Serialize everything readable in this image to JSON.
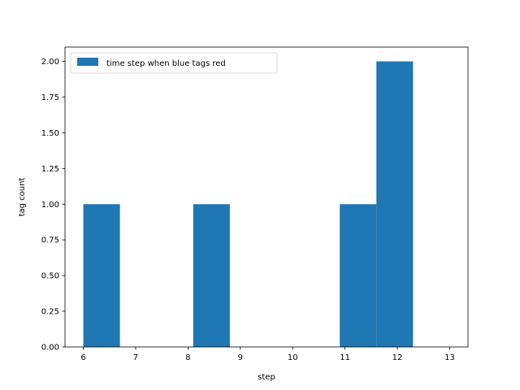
{
  "chart_data": {
    "type": "bar",
    "title": "",
    "xlabel": "step",
    "ylabel": "tag count",
    "xlim": [
      5.65,
      13.35
    ],
    "ylim": [
      0,
      2.1
    ],
    "x_ticks": [
      6,
      7,
      8,
      9,
      10,
      11,
      12,
      13
    ],
    "x_tick_labels": [
      "6",
      "7",
      "8",
      "9",
      "10",
      "11",
      "12",
      "13"
    ],
    "y_ticks": [
      0,
      0.25,
      0.5,
      0.75,
      1.0,
      1.25,
      1.5,
      1.75,
      2.0
    ],
    "y_tick_labels": [
      "0.00",
      "0.25",
      "0.50",
      "0.75",
      "1.00",
      "1.25",
      "1.50",
      "1.75",
      "2.00"
    ],
    "bin_edges": [
      6.0,
      6.7,
      7.4,
      8.1,
      8.8,
      9.5,
      10.2,
      10.9,
      11.6,
      12.3,
      13.0
    ],
    "series": [
      {
        "name": "time step when blue tags red",
        "color": "#1f77b4",
        "values": [
          1,
          0,
          0,
          1,
          0,
          0,
          0,
          1,
          2,
          0
        ]
      }
    ],
    "values": [
      1,
      0,
      0,
      1,
      0,
      0,
      0,
      1,
      2,
      0
    ],
    "legend_position": "top-left",
    "grid": false
  }
}
